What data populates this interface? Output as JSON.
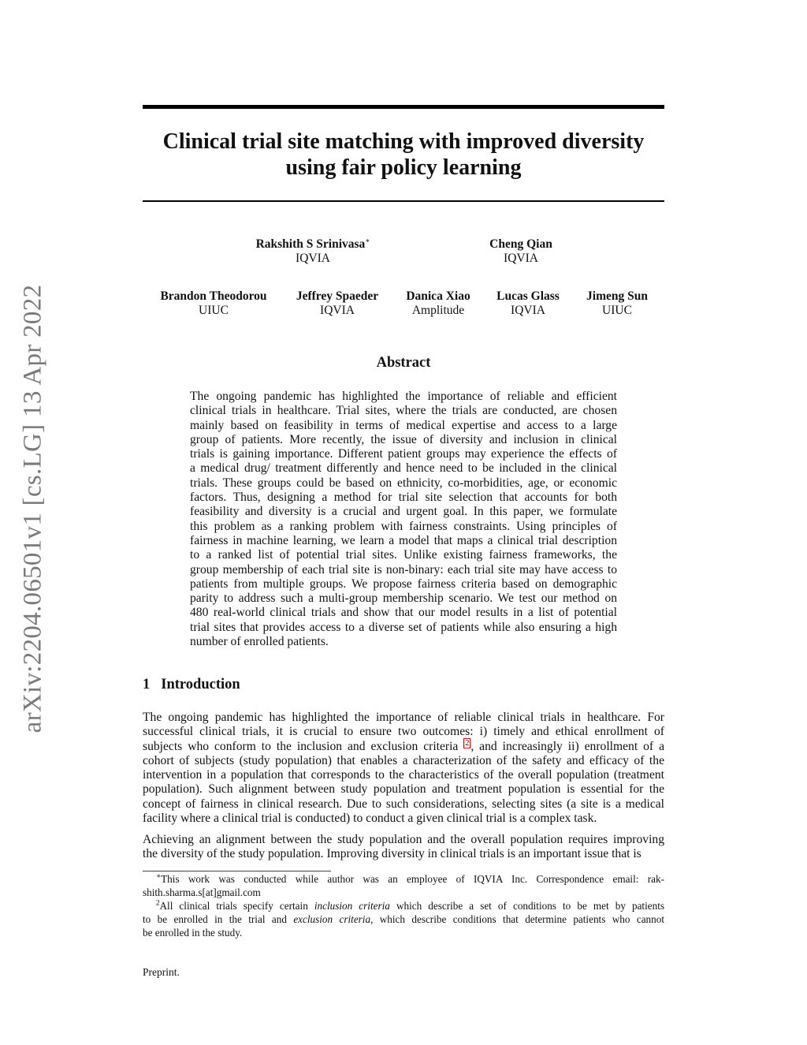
{
  "arxiv_stamp": "arXiv:2204.06501v1  [cs.LG]  13 Apr 2022",
  "title": [
    "Clinical trial site matching with improved diversity",
    "using fair policy learning"
  ],
  "authors_row1": [
    {
      "name": "Rakshith S Srinivasa",
      "mark": "∗",
      "affil": "IQVIA"
    },
    {
      "name": "Cheng Qian",
      "affil": "IQVIA"
    }
  ],
  "authors_row2": [
    {
      "name": "Brandon Theodorou",
      "affil": "UIUC"
    },
    {
      "name": "Jeffrey Spaeder",
      "affil": "IQVIA"
    },
    {
      "name": "Danica Xiao",
      "affil": "Amplitude"
    },
    {
      "name": "Lucas Glass",
      "affil": "IQVIA"
    },
    {
      "name": "Jimeng Sun",
      "affil": "UIUC"
    }
  ],
  "abstract_heading": "Abstract",
  "abstract_lines": [
    "The ongoing pandemic has highlighted the importance of reliable and efficient",
    "clinical trials in healthcare. Trial sites, where the trials are conducted, are chosen",
    "mainly based on feasibility in terms of medical expertise and access to a large",
    "group of patients. More recently, the issue of diversity and inclusion in clinical",
    "trials is gaining importance. Different patient groups may experience the effects of",
    "a medical drug/ treatment differently and hence need to be included in the clinical",
    "trials. These groups could be based on ethnicity, co-morbidities, age, or economic",
    "factors. Thus, designing a method for trial site selection that accounts for both",
    "feasibility and diversity is a crucial and urgent goal. In this paper, we formulate",
    "this problem as a ranking problem with fairness constraints. Using principles of",
    "fairness in machine learning, we learn a model that maps a clinical trial description",
    "to a ranked list of potential trial sites. Unlike existing fairness frameworks, the",
    "group membership of each trial site is non-binary: each trial site may have access to",
    "patients from multiple groups. We propose fairness criteria based on demographic",
    "parity to address such a multi-group membership scenario. We test our method on",
    "480 real-world clinical trials and show that our model results in a list of potential",
    "trial sites that provides access to a diverse set of patients while also ensuring a high",
    "number of enrolled patients."
  ],
  "intro": {
    "number": "1",
    "heading": "Introduction",
    "para1_lines": [
      "The ongoing pandemic has highlighted the importance of reliable clinical trials in healthcare. For",
      "successful clinical trials, it is crucial to ensure two outcomes: i) timely and ethical enrollment of",
      [
        "subjects who conform to the inclusion and exclusion criteria ",
        "2",
        ", and increasingly ii) enrollment of a"
      ],
      "cohort of subjects (study population) that enables a characterization of the safety and efficacy of the",
      "intervention in a population that corresponds to the characteristics of the overall population (treatment",
      "population). Such alignment between study population and treatment population is essential for the",
      "concept of fairness in clinical research. Due to such considerations, selecting sites (a site is a medical",
      "facility where a clinical trial is conducted) to conduct a given clinical trial is a complex task."
    ],
    "para2_lines": [
      "Achieving an alignment between the study population and the overall population requires improving",
      "the diversity of the study population. Improving diversity in clinical trials is an important issue that is"
    ]
  },
  "footnotes": {
    "fn1_mark": "∗",
    "fn1_line1": "This work was conducted while author was an employee of IQVIA Inc.  Correspondence email: rak-",
    "fn1_line2": "shith.sharma.s[at]gmail.com",
    "fn2_mark": "2",
    "fn2_a": "All clinical trials specify certain ",
    "fn2_i1": "inclusion criteria",
    "fn2_b": " which describe a set of conditions to be met by patients",
    "fn2_c": "to be enrolled in the trial and ",
    "fn2_i2": "exclusion criteria",
    "fn2_d": ", which describe conditions that determine patients who cannot",
    "fn2_e": "be enrolled in the study."
  },
  "footer": "Preprint.",
  "colors": {
    "link_box": "#ee0000",
    "stamp": "#7a7a7a"
  }
}
